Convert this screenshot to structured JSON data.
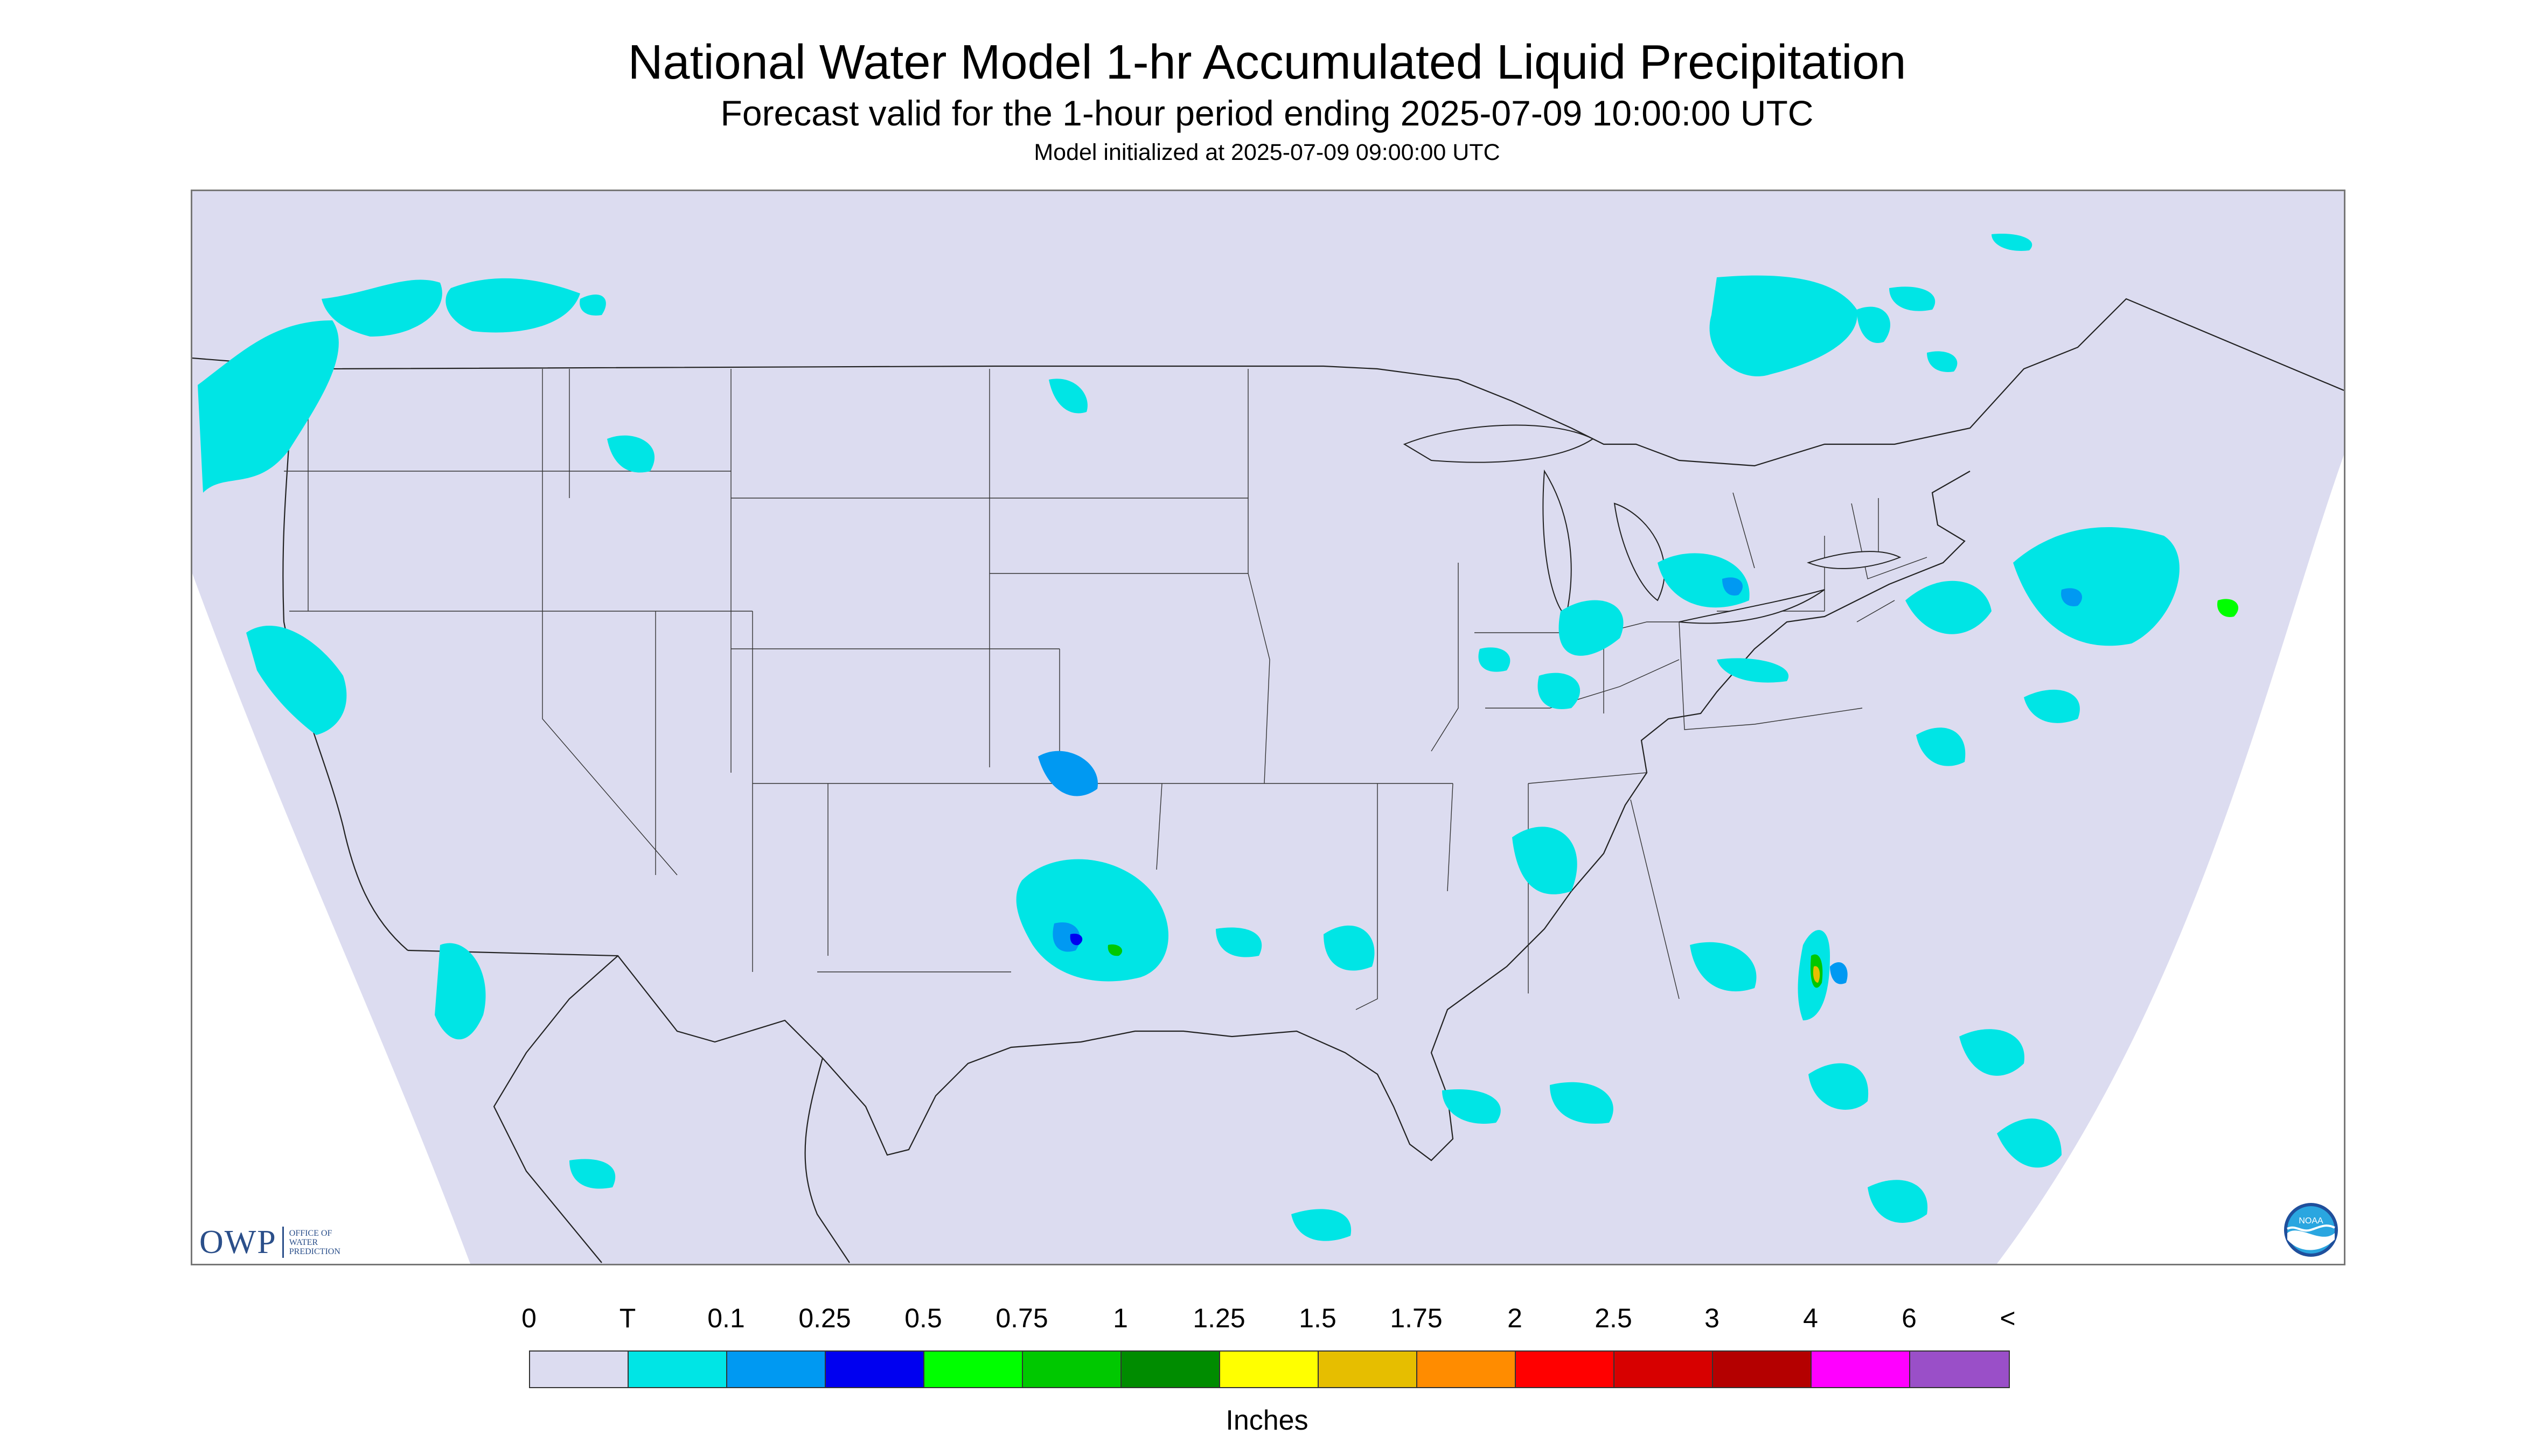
{
  "header": {
    "title": "National Water Model 1-hr Accumulated Liquid Precipitation",
    "subtitle": "Forecast valid for the 1-hour period ending 2025-07-09 10:00:00 UTC",
    "init_line": "Model initialized at 2025-07-09 09:00:00 UTC"
  },
  "branding": {
    "owp_abbrev": "OWP",
    "owp_name_lines": [
      "OFFICE OF",
      "WATER",
      "PREDICTION"
    ],
    "noaa_text": "NOAA"
  },
  "legend": {
    "labels": [
      "0",
      "T",
      "0.1",
      "0.25",
      "0.5",
      "0.75",
      "1",
      "1.25",
      "1.5",
      "1.75",
      "2",
      "2.5",
      "3",
      "4",
      "6",
      "<"
    ],
    "colors": [
      "#dcdcf0",
      "#00e5e5",
      "#0099f2",
      "#0000f0",
      "#00ff00",
      "#00c800",
      "#008c00",
      "#ffff00",
      "#e6be00",
      "#ff8c00",
      "#ff0000",
      "#d70000",
      "#b40000",
      "#ff00ff",
      "#9a4fc8"
    ],
    "units": "Inches"
  },
  "map": {
    "background_color": "#dcdcf0",
    "border_color": "#333333",
    "precip_regions": [
      {
        "area": "Pacific Northwest",
        "category": "T"
      },
      {
        "area": "Montana / Canada border",
        "category": "T"
      },
      {
        "area": "Ontario / Quebec",
        "category": "T"
      },
      {
        "area": "Great Lakes / Michigan",
        "category": "0.1"
      },
      {
        "area": "Northeast / New England",
        "category": "0.25"
      },
      {
        "area": "Mid-Atlantic",
        "category": "T"
      },
      {
        "area": "Ohio / Mississippi valley",
        "category": "T"
      },
      {
        "area": "Oklahoma / Texas panhandle",
        "category": "0.5"
      },
      {
        "area": "Kansas",
        "category": "0.1"
      },
      {
        "area": "South Carolina coast",
        "category": "1.75"
      },
      {
        "area": "Northern California / Oregon",
        "category": "T"
      },
      {
        "area": "Baja California / Mexico",
        "category": "T"
      },
      {
        "area": "Gulf of Mexico",
        "category": "T"
      },
      {
        "area": "Florida / Atlantic",
        "category": "T"
      }
    ]
  }
}
